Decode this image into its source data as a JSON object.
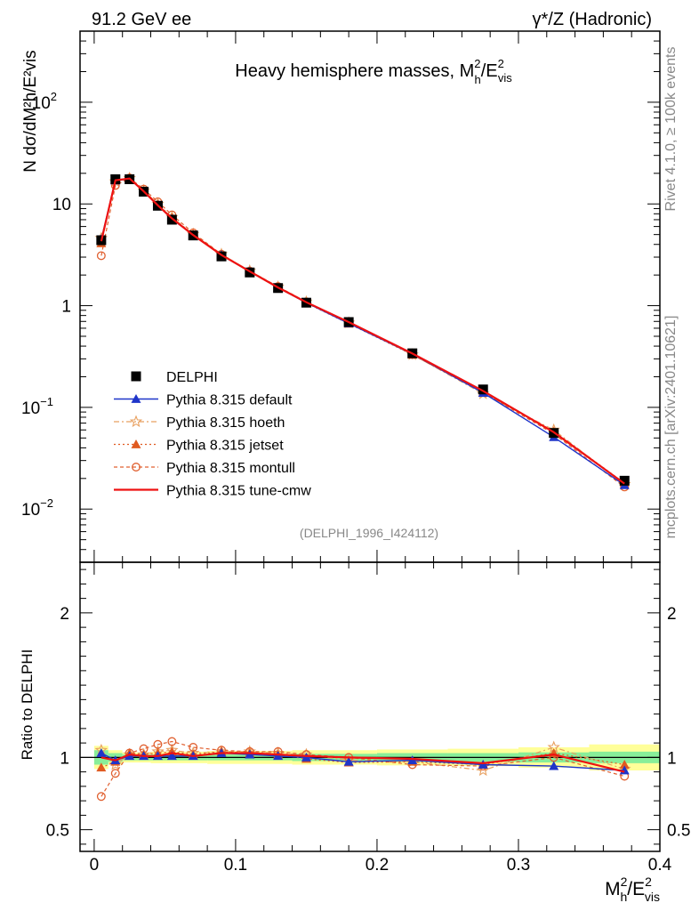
{
  "header": {
    "left": "91.2 GeV ee",
    "right_prefix": "γ*/Z",
    "right_suffix": " (Hadronic)"
  },
  "side_labels": {
    "rivet": "Rivet 4.1.0, ≥ 100k events",
    "mcplots": "mcplots.cern.ch [arXiv:2401.10621]"
  },
  "chart_data": [
    {
      "type": "line",
      "title_text": "Heavy hemisphere masses, M",
      "title_sup": "2",
      "title_sub": "h",
      "title_tail_main": "/E",
      "title_tail_sup": "2",
      "title_tail_sub": "vis",
      "analysis_id": "(DELPHI_1996_I424112)",
      "yscale": "log",
      "ylim": [
        0.003,
        500
      ],
      "xlim": [
        -0.01,
        0.4
      ],
      "ylabel": "N  dσ/dM²h/E²vis",
      "yticks": [
        {
          "value": 0.01,
          "base": "10",
          "exp": "−2"
        },
        {
          "value": 0.1,
          "base": "10",
          "exp": "−1"
        },
        {
          "value": 1,
          "base": "1",
          "exp": ""
        },
        {
          "value": 10,
          "base": "10",
          "exp": ""
        },
        {
          "value": 100,
          "base": "10",
          "exp": "2"
        }
      ],
      "x": [
        0.005,
        0.015,
        0.025,
        0.035,
        0.045,
        0.055,
        0.07,
        0.09,
        0.11,
        0.13,
        0.15,
        0.18,
        0.225,
        0.275,
        0.325,
        0.375
      ],
      "legend": {
        "placement": "middle-left",
        "entries": [
          {
            "label": "DELPHI",
            "style": "square",
            "color": "#000000"
          },
          {
            "label": "Pythia 8.315 default",
            "style": "triangle",
            "color": "#1f35c9"
          },
          {
            "label": "Pythia 8.315 hoeth",
            "style": "star",
            "color": "#e8a060"
          },
          {
            "label": "Pythia 8.315 jetset",
            "style": "triangle",
            "color": "#e05a20"
          },
          {
            "label": "Pythia 8.315 montull",
            "style": "circle",
            "color": "#e06030"
          },
          {
            "label": "Pythia 8.315 tune-cmw",
            "style": "line",
            "color": "#ee1111"
          }
        ]
      },
      "series": [
        {
          "name": "DELPHI",
          "values": [
            4.4,
            17.5,
            17.5,
            13.2,
            9.6,
            7.0,
            4.9,
            3.05,
            2.12,
            1.49,
            1.07,
            0.69,
            0.34,
            0.15,
            0.056,
            0.019
          ]
        },
        {
          "name": "Pythia 8.315 default",
          "values": [
            4.5,
            17.0,
            17.6,
            13.3,
            9.7,
            7.1,
            4.95,
            3.15,
            2.17,
            1.5,
            1.07,
            0.67,
            0.335,
            0.139,
            0.051,
            0.0172
          ]
        },
        {
          "name": "Pythia 8.315 hoeth",
          "values": [
            4.6,
            16.6,
            17.9,
            13.5,
            10.0,
            7.4,
            5.05,
            3.2,
            2.2,
            1.53,
            1.09,
            0.68,
            0.33,
            0.136,
            0.06,
            0.0175
          ]
        },
        {
          "name": "Pythia 8.315 jetset",
          "values": [
            4.1,
            17.0,
            18.0,
            13.5,
            9.9,
            7.3,
            5.0,
            3.18,
            2.18,
            1.52,
            1.06,
            0.665,
            0.33,
            0.14,
            0.058,
            0.018
          ]
        },
        {
          "name": "Pythia 8.315 montull",
          "values": [
            3.1,
            15.2,
            18.0,
            14.0,
            10.5,
            7.8,
            5.2,
            3.2,
            2.19,
            1.54,
            1.09,
            0.69,
            0.33,
            0.14,
            0.055,
            0.0165
          ]
        },
        {
          "name": "Pythia 8.315 tune-cmw",
          "values": [
            4.3,
            17.1,
            17.8,
            13.3,
            9.7,
            7.2,
            4.95,
            3.15,
            2.17,
            1.51,
            1.08,
            0.69,
            0.338,
            0.145,
            0.057,
            0.0178
          ]
        }
      ]
    },
    {
      "type": "line",
      "ylabel": "Ratio to DELPHI",
      "xlabel_main": "M",
      "xlabel_sup": "2",
      "xlabel_sub": "h",
      "xlabel_tail": "/E",
      "xlabel_tail_sup": "2",
      "xlabel_tail_sub": "vis",
      "yscale": "linear",
      "ylim": [
        0.35,
        2.35
      ],
      "xlim": [
        -0.01,
        0.4
      ],
      "yticks": [
        0.5,
        1,
        2
      ],
      "ytick_labels": [
        "0.5",
        "1",
        "2"
      ],
      "xticks": [
        0,
        0.1,
        0.2,
        0.3,
        0.4
      ],
      "xtick_labels": [
        "0",
        "0.1",
        "0.2",
        "0.3",
        "0.4"
      ],
      "bands": [
        {
          "x0": 0.0,
          "x1": 0.01,
          "inner": 0.05,
          "outer": 0.08
        },
        {
          "x0": 0.01,
          "x1": 0.02,
          "inner": 0.03,
          "outer": 0.05
        },
        {
          "x0": 0.02,
          "x1": 0.04,
          "inner": 0.02,
          "outer": 0.035
        },
        {
          "x0": 0.04,
          "x1": 0.08,
          "inner": 0.02,
          "outer": 0.04
        },
        {
          "x0": 0.08,
          "x1": 0.14,
          "inner": 0.02,
          "outer": 0.045
        },
        {
          "x0": 0.14,
          "x1": 0.2,
          "inner": 0.025,
          "outer": 0.05
        },
        {
          "x0": 0.2,
          "x1": 0.25,
          "inner": 0.03,
          "outer": 0.055
        },
        {
          "x0": 0.25,
          "x1": 0.3,
          "inner": 0.03,
          "outer": 0.06
        },
        {
          "x0": 0.3,
          "x1": 0.35,
          "inner": 0.035,
          "outer": 0.07
        },
        {
          "x0": 0.35,
          "x1": 0.4,
          "inner": 0.04,
          "outer": 0.09
        }
      ],
      "x": [
        0.005,
        0.015,
        0.025,
        0.035,
        0.045,
        0.055,
        0.07,
        0.09,
        0.11,
        0.13,
        0.15,
        0.18,
        0.225,
        0.275,
        0.325,
        0.375
      ],
      "series": [
        {
          "name": "Pythia 8.315 default",
          "values": [
            1.03,
            0.98,
            1.01,
            1.01,
            1.01,
            1.01,
            1.01,
            1.03,
            1.02,
            1.01,
            1.0,
            0.97,
            0.98,
            0.95,
            0.94,
            0.91
          ]
        },
        {
          "name": "Pythia 8.315 hoeth",
          "values": [
            1.05,
            0.95,
            1.02,
            1.02,
            1.04,
            1.05,
            1.03,
            1.04,
            1.04,
            1.03,
            1.02,
            0.98,
            0.97,
            0.91,
            1.07,
            0.92
          ]
        },
        {
          "name": "Pythia 8.315 jetset",
          "values": [
            0.93,
            0.97,
            1.03,
            1.02,
            1.03,
            1.04,
            1.02,
            1.04,
            1.03,
            1.02,
            0.99,
            0.965,
            0.97,
            0.95,
            1.03,
            0.95
          ]
        },
        {
          "name": "Pythia 8.315 montull",
          "values": [
            0.73,
            0.89,
            1.03,
            1.06,
            1.09,
            1.11,
            1.07,
            1.05,
            1.04,
            1.04,
            1.02,
            1.0,
            0.95,
            0.94,
            1.0,
            0.87
          ]
        },
        {
          "name": "Pythia 8.315 tune-cmw",
          "values": [
            1.0,
            0.98,
            1.02,
            1.01,
            1.01,
            1.03,
            1.01,
            1.03,
            1.03,
            1.02,
            1.01,
            1.0,
            0.99,
            0.96,
            1.02,
            0.9
          ]
        }
      ]
    }
  ]
}
